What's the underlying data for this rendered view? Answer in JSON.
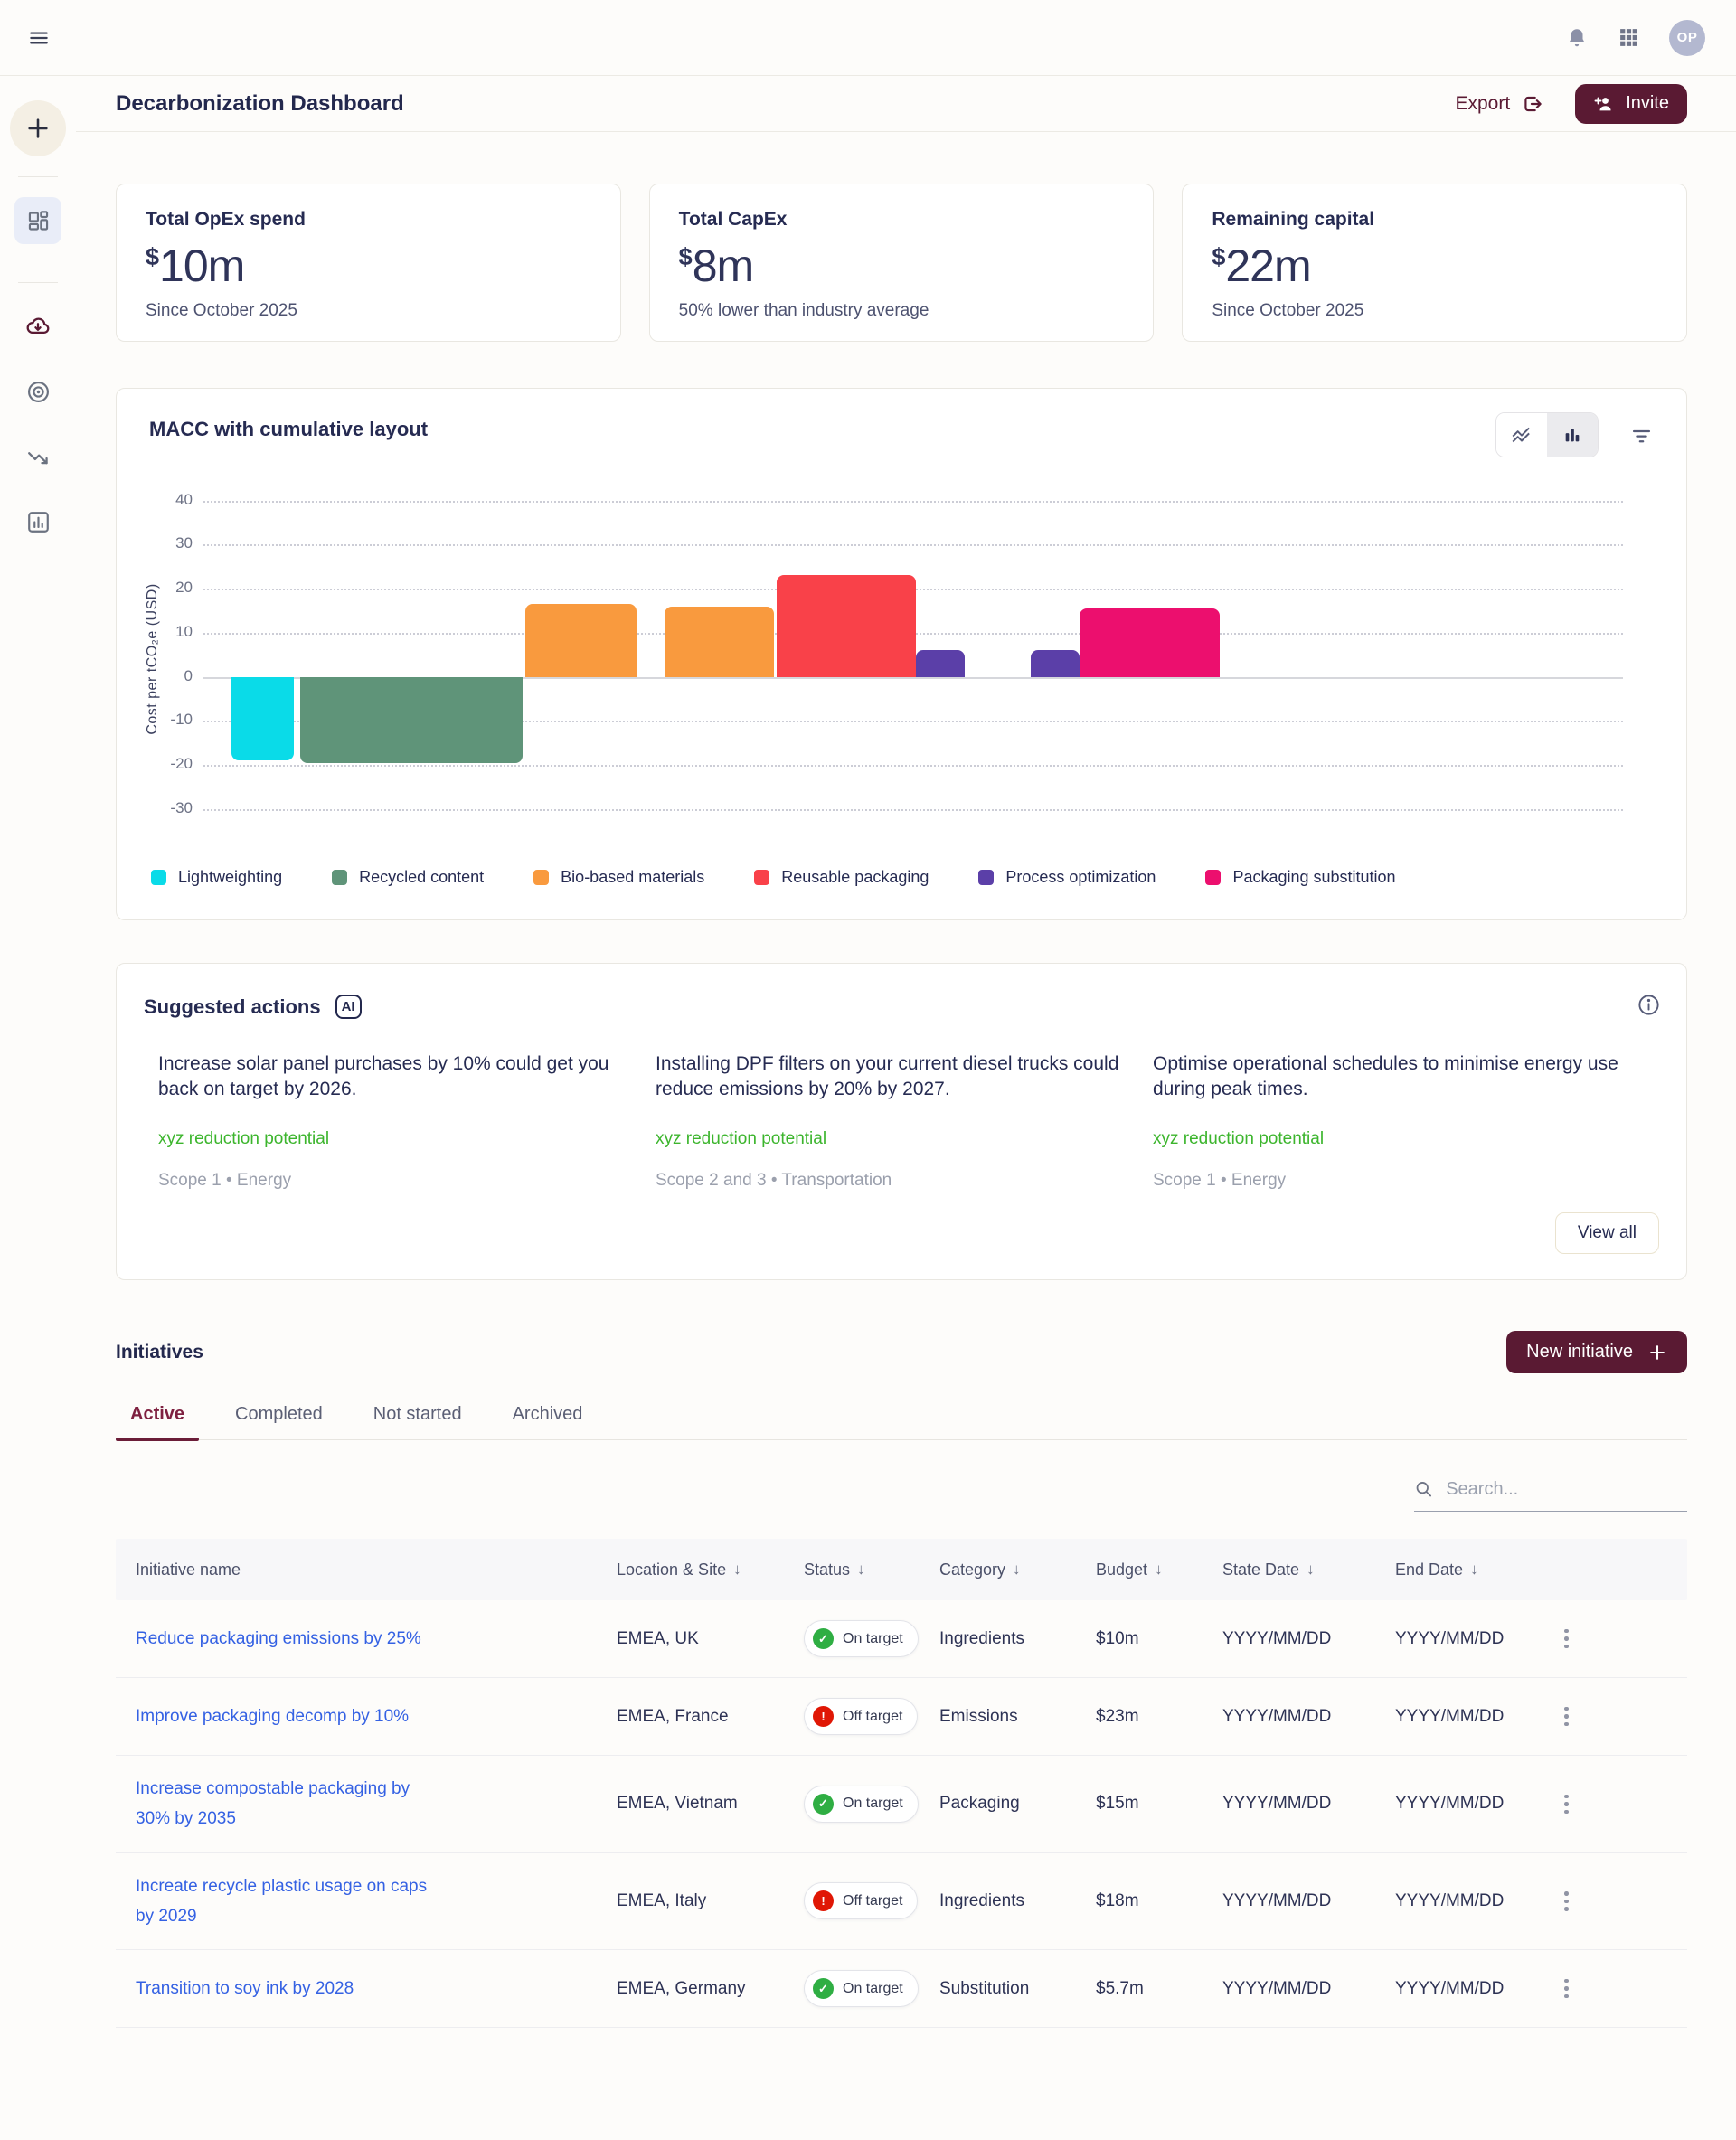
{
  "topbar": {
    "avatar_initials": "OP"
  },
  "header": {
    "title": "Decarbonization Dashboard",
    "export_label": "Export",
    "invite_label": "Invite"
  },
  "stats": [
    {
      "label": "Total OpEx spend",
      "currency": "$",
      "value": "10m",
      "caption": "Since October 2025"
    },
    {
      "label": "Total CapEx",
      "currency": "$",
      "value": "8m",
      "caption": "50% lower than industry average"
    },
    {
      "label": "Remaining capital",
      "currency": "$",
      "value": "22m",
      "caption": "Since October 2025"
    }
  ],
  "chart_data": {
    "type": "bar",
    "variant": "macc-waterfall",
    "title": "MACC with cumulative layout",
    "ylabel": "Cost per tCO₂e (USD)",
    "ylim": [
      -36,
      44
    ],
    "yticks": [
      40,
      30,
      20,
      10,
      0,
      -10,
      -20,
      -30
    ],
    "grid": "dotted-horizontal",
    "legend_position": "bottom",
    "bars": [
      {
        "category": "Lightweighting",
        "value": -19,
        "x_start_pct": 2.0,
        "x_end_pct": 6.4,
        "color": "#0adbe8"
      },
      {
        "category": "Recycled content",
        "value": -19.5,
        "x_start_pct": 6.8,
        "x_end_pct": 22.5,
        "color": "#5f9479"
      },
      {
        "category": "Bio-based materials",
        "value": 16.5,
        "x_start_pct": 22.7,
        "x_end_pct": 30.5,
        "color": "#f99a3e"
      },
      {
        "category": "Bio-based materials",
        "value": 16,
        "x_start_pct": 32.5,
        "x_end_pct": 40.2,
        "color": "#f99a3e"
      },
      {
        "category": "Reusable packaging",
        "value": 23,
        "x_start_pct": 40.4,
        "x_end_pct": 50.2,
        "color": "#f94149"
      },
      {
        "category": "Process optimization",
        "value": 6,
        "x_start_pct": 50.2,
        "x_end_pct": 53.6,
        "color": "#5b3fa8"
      },
      {
        "category": "Process optimization",
        "value": 6,
        "x_start_pct": 58.3,
        "x_end_pct": 61.7,
        "color": "#5b3fa8"
      },
      {
        "category": "Packaging substitution",
        "value": 15.5,
        "x_start_pct": 61.7,
        "x_end_pct": 71.6,
        "color": "#ec0f6e"
      }
    ],
    "legend": [
      {
        "label": "Lightweighting",
        "color": "#0adbe8"
      },
      {
        "label": "Recycled content",
        "color": "#5f9479"
      },
      {
        "label": "Bio-based materials",
        "color": "#f99a3e"
      },
      {
        "label": "Reusable packaging",
        "color": "#f94149"
      },
      {
        "label": "Process optimization",
        "color": "#5b3fa8"
      },
      {
        "label": "Packaging substitution",
        "color": "#ec0f6e"
      }
    ]
  },
  "suggested_actions": {
    "title": "Suggested actions",
    "badge": "AI",
    "items": [
      {
        "text": "Increase solar panel purchases by 10% could get you back on target by 2026.",
        "potential": "xyz reduction potential",
        "scope": "Scope 1 • Energy"
      },
      {
        "text": "Installing DPF filters on your current diesel trucks could reduce emissions by 20% by 2027.",
        "potential": "xyz reduction potential",
        "scope": "Scope 2 and 3 • Transportation"
      },
      {
        "text": "Optimise operational schedules to minimise energy use during peak times.",
        "potential": "xyz reduction potential",
        "scope": "Scope 1 • Energy"
      }
    ],
    "view_all_label": "View all",
    "potential_color": "#3cb52d"
  },
  "initiatives": {
    "title": "Initiatives",
    "new_button_label": "New initiative",
    "tabs": [
      {
        "label": "Active",
        "active": true
      },
      {
        "label": "Completed",
        "active": false
      },
      {
        "label": "Not started",
        "active": false
      },
      {
        "label": "Archived",
        "active": false
      }
    ],
    "search_placeholder": "Search...",
    "table": {
      "sort_icon": "↓",
      "columns": [
        "Initiative name",
        "Location & Site",
        "Status",
        "Category",
        "Budget",
        "State Date",
        "End Date"
      ],
      "status_icons": {
        "on": "✓",
        "off": "!"
      },
      "status_colors": {
        "on": "#2fae43",
        "off": "#e01705"
      },
      "rows": [
        {
          "name": "Reduce packaging emissions by 25%",
          "location": "EMEA, UK",
          "status": "On target",
          "status_type": "on",
          "category": "Ingredients",
          "budget": "$10m",
          "start_date": "YYYY/MM/DD",
          "end_date": "YYYY/MM/DD"
        },
        {
          "name": "Improve packaging decomp by 10%",
          "location": "EMEA, France",
          "status": "Off target",
          "status_type": "off",
          "category": "Emissions",
          "budget": "$23m",
          "start_date": "YYYY/MM/DD",
          "end_date": "YYYY/MM/DD"
        },
        {
          "name": "Increase compostable packaging by 30% by 2035",
          "location": "EMEA, Vietnam",
          "status": "On target",
          "status_type": "on",
          "category": "Packaging",
          "budget": "$15m",
          "start_date": "YYYY/MM/DD",
          "end_date": "YYYY/MM/DD"
        },
        {
          "name": "Increate recycle plastic usage on caps by 2029",
          "location": "EMEA, Italy",
          "status": "Off target",
          "status_type": "off",
          "category": "Ingredients",
          "budget": "$18m",
          "start_date": "YYYY/MM/DD",
          "end_date": "YYYY/MM/DD"
        },
        {
          "name": "Transition to soy ink by 2028",
          "location": "EMEA, Germany",
          "status": "On target",
          "status_type": "on",
          "category": "Substitution",
          "budget": "$5.7m",
          "start_date": "YYYY/MM/DD",
          "end_date": "YYYY/MM/DD"
        }
      ]
    }
  },
  "colors": {
    "accent_maroon": "#5a1a33",
    "link_blue": "#3461e3",
    "tab_active": "#7e2040"
  }
}
